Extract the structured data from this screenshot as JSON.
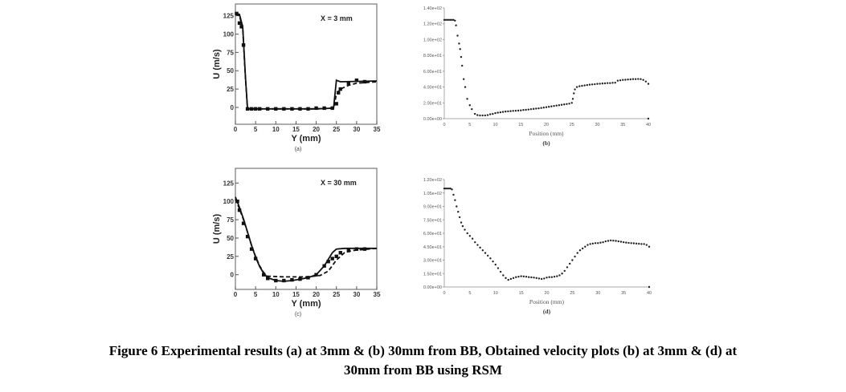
{
  "chart_data": [
    {
      "id": "a",
      "type": "line",
      "panel_label": "(a)",
      "annotation": "X = 3 mm",
      "xlabel": "Y (mm)",
      "ylabel": "U (m/s)",
      "xlim": [
        0,
        35
      ],
      "ylim": [
        -23,
        141
      ],
      "xticks": [
        0,
        5,
        10,
        15,
        20,
        25,
        30,
        35
      ],
      "yticks": [
        0,
        25,
        50,
        75,
        100,
        125
      ],
      "xtick_labels": [
        "0",
        "5",
        "10",
        "15",
        "20",
        "25",
        "30",
        "35"
      ],
      "ytick_labels": [
        "0",
        "25",
        "50",
        "75",
        "100",
        "125"
      ],
      "series": [
        {
          "name": "solid",
          "style": "solid",
          "x": [
            0,
            1,
            1.8,
            2.5,
            3,
            10,
            20,
            24.3,
            25,
            26,
            35
          ],
          "y": [
            128,
            127,
            110,
            40,
            -2,
            -2,
            -2,
            -1,
            37,
            35,
            36
          ]
        },
        {
          "name": "dashed",
          "style": "dashed",
          "x": [
            0,
            1,
            1.8,
            2.5,
            3,
            10,
            20,
            24.3,
            25,
            26,
            28,
            30,
            35
          ],
          "y": [
            127,
            125,
            108,
            38,
            -2,
            -2,
            -2,
            -1,
            18,
            25,
            30,
            33,
            35
          ]
        },
        {
          "name": "experiment",
          "style": "markers",
          "x": [
            0.3,
            1,
            1.5,
            2,
            3,
            4,
            5,
            6,
            8,
            10,
            12,
            14,
            16,
            18,
            20,
            22,
            24,
            25,
            25.5,
            26,
            28,
            30,
            32
          ],
          "y": [
            128,
            115,
            110,
            85,
            -2,
            -2,
            -2,
            -2,
            -2,
            -2,
            -2,
            -2,
            -2,
            -2,
            -1,
            -1,
            -1,
            5,
            20,
            25,
            33,
            37,
            35
          ]
        }
      ]
    },
    {
      "id": "b",
      "type": "scatter",
      "panel_label": "(b)",
      "xlabel": "Position (mm)",
      "xlim": [
        0,
        40
      ],
      "ylim": [
        0,
        140
      ],
      "xticks": [
        0,
        5,
        10,
        15,
        20,
        25,
        30,
        35,
        40
      ],
      "yticks": [
        0,
        20,
        40,
        60,
        80,
        100,
        120,
        140
      ],
      "xtick_labels": [
        "0",
        "5",
        "10",
        "15",
        "20",
        "25",
        "30",
        "35",
        "40"
      ],
      "ytick_labels": [
        "0.00e+00",
        "2.00e+01",
        "4.00e+01",
        "6.00e+01",
        "8.00e+01",
        "1.00e+02",
        "1.20e+02",
        "1.40e+02"
      ],
      "x": [
        0,
        0.3,
        0.6,
        0.9,
        1.2,
        1.5,
        1.8,
        2.1,
        2.3,
        2.6,
        2.9,
        3.1,
        3.3,
        3.5,
        3.8,
        4.1,
        4.5,
        5,
        5.4,
        6,
        6.5,
        7,
        7.5,
        8,
        8.5,
        9,
        9.5,
        10,
        10.5,
        11,
        11.5,
        12,
        12.5,
        13,
        13.5,
        14,
        14.5,
        15,
        15.5,
        16,
        16.5,
        17,
        17.5,
        18,
        18.5,
        19,
        19.5,
        20,
        20.5,
        21,
        21.5,
        22,
        22.5,
        23,
        23.5,
        24,
        24.5,
        25,
        25.2,
        25.4,
        25.6,
        26,
        26.5,
        27,
        27.5,
        28,
        28.5,
        29,
        29.5,
        30,
        30.5,
        31,
        31.5,
        32,
        32.5,
        33,
        33.5,
        34,
        34.5,
        35,
        35.5,
        36,
        36.5,
        37,
        37.5,
        38,
        38.5,
        39,
        39.5,
        40
      ],
      "y": [
        125,
        125,
        125,
        125,
        125,
        125,
        125,
        124,
        118,
        105,
        95,
        88,
        78,
        67,
        50,
        40,
        25,
        17,
        12,
        6,
        4.5,
        4,
        4,
        4,
        4.5,
        5.5,
        6,
        7,
        7.5,
        8,
        8.5,
        9,
        9.2,
        9.5,
        9.8,
        10,
        10.2,
        10.5,
        11,
        11.2,
        11.5,
        12,
        12.3,
        12.7,
        13,
        13.5,
        14,
        14.5,
        15,
        15.5,
        16,
        16.5,
        17,
        17.5,
        18,
        18.5,
        19,
        20,
        25,
        32,
        37,
        40,
        41,
        41.5,
        42,
        42.5,
        43,
        43.3,
        43.6,
        44,
        44.2,
        44.5,
        44.7,
        45,
        45,
        45.3,
        45.5,
        48,
        48.5,
        49,
        49.2,
        49.5,
        49.7,
        50,
        50,
        50.2,
        50,
        49,
        47,
        44
      ]
    },
    {
      "id": "c",
      "type": "line",
      "panel_label": "(c)",
      "annotation": "X = 30 mm",
      "xlabel": "Y (mm)",
      "ylabel": "U (m/s)",
      "xlim": [
        0,
        35
      ],
      "ylim": [
        -20,
        145
      ],
      "xticks": [
        0,
        5,
        10,
        15,
        20,
        25,
        30,
        35
      ],
      "yticks": [
        0,
        25,
        50,
        75,
        100,
        125
      ],
      "xtick_labels": [
        "0",
        "5",
        "10",
        "15",
        "20",
        "25",
        "30",
        "35"
      ],
      "ytick_labels": [
        "0",
        "25",
        "50",
        "75",
        "100",
        "125"
      ],
      "series": [
        {
          "name": "solid",
          "style": "solid",
          "x": [
            0,
            1,
            2,
            3,
            4,
            5,
            6,
            7,
            8,
            10,
            12,
            14,
            16,
            18,
            20,
            22,
            24,
            25,
            27,
            35
          ],
          "y": [
            106,
            92,
            76,
            58,
            40,
            24,
            11,
            2,
            -4,
            -8,
            -9,
            -8,
            -6,
            -4,
            0,
            12,
            30,
            35,
            36,
            36
          ]
        },
        {
          "name": "dashed",
          "style": "dashed",
          "x": [
            0,
            1,
            2,
            3,
            4,
            5,
            6,
            7,
            8,
            12,
            18,
            21,
            23,
            25,
            27,
            29,
            35
          ],
          "y": [
            103,
            90,
            75,
            58,
            40,
            25,
            12,
            3,
            -2,
            -3,
            -3,
            -1,
            5,
            20,
            30,
            33,
            36
          ]
        },
        {
          "name": "experiment",
          "style": "markers",
          "x": [
            0.5,
            1,
            2,
            3,
            4,
            5,
            7,
            8,
            10,
            12,
            14,
            16,
            18,
            20,
            22,
            23,
            24,
            25,
            26,
            28,
            30,
            32
          ],
          "y": [
            100,
            88,
            70,
            52,
            35,
            22,
            0,
            -5,
            -8,
            -8,
            -7,
            -6,
            -4,
            0,
            12,
            18,
            22,
            25,
            30,
            33,
            35,
            35
          ]
        }
      ]
    },
    {
      "id": "d",
      "type": "scatter",
      "panel_label": "(d)",
      "xlabel": "Position (mm)",
      "xlim": [
        0,
        40
      ],
      "ylim": [
        0,
        120
      ],
      "xticks": [
        0,
        5,
        10,
        15,
        20,
        25,
        30,
        35,
        40
      ],
      "yticks": [
        0,
        15,
        30,
        45,
        60,
        75,
        90,
        105,
        120
      ],
      "xtick_labels": [
        "0",
        "5",
        "10",
        "15",
        "20",
        "25",
        "30",
        "35",
        "40"
      ],
      "ytick_labels": [
        "0.00e+00",
        "1.50e+01",
        "3.00e+01",
        "4.50e+01",
        "6.00e+01",
        "7.50e+01",
        "9.00e+01",
        "1.05e+02",
        "1.20e+02"
      ],
      "x": [
        0,
        0.3,
        0.6,
        0.9,
        1.2,
        1.5,
        1.8,
        2.1,
        2.4,
        2.7,
        3,
        3.3,
        3.6,
        4,
        4.5,
        5,
        5.5,
        6,
        6.5,
        7,
        7.5,
        8,
        8.5,
        9,
        9.5,
        10,
        10.5,
        11,
        11.5,
        12,
        12.5,
        13,
        13.5,
        14,
        14.5,
        15,
        15.5,
        16,
        16.5,
        17,
        17.5,
        18,
        18.5,
        19,
        19.5,
        20,
        20.5,
        21,
        21.5,
        22,
        22.5,
        23,
        23.5,
        24,
        24.5,
        25,
        25.5,
        26,
        26.5,
        27,
        27.5,
        28,
        28.5,
        29,
        29.5,
        30,
        30.5,
        31,
        31.5,
        32,
        32.5,
        33,
        33.5,
        34,
        34.5,
        35,
        35.5,
        36,
        36.5,
        37,
        37.5,
        38,
        38.5,
        39,
        39.5,
        40
      ],
      "y": [
        110,
        110,
        110,
        110,
        110,
        109,
        103,
        97,
        90,
        84,
        78,
        72,
        68,
        64,
        60,
        57,
        54,
        50,
        47,
        44,
        41,
        38,
        35,
        32,
        28.5,
        25,
        21,
        17,
        13,
        10,
        8,
        9,
        10,
        11,
        11.5,
        12,
        11.8,
        11.5,
        11,
        10.8,
        10.5,
        10,
        9.5,
        9,
        9.5,
        10.5,
        11,
        11,
        11.5,
        12,
        13,
        15,
        18,
        22,
        26,
        30,
        34,
        38,
        41,
        43,
        45,
        47,
        48,
        48.5,
        49,
        49,
        49.5,
        50,
        51,
        51.5,
        52,
        51.8,
        51.5,
        51,
        50.5,
        50,
        49.6,
        49.2,
        49,
        48.8,
        48.5,
        48.3,
        48,
        48,
        47,
        45
      ]
    }
  ],
  "caption": {
    "line1": "Figure 6 Experimental results (a) at 3mm & (b) 30mm from BB, Obtained velocity plots (b) at 3mm & (d) at",
    "line2": "30mm from BB using RSM"
  }
}
